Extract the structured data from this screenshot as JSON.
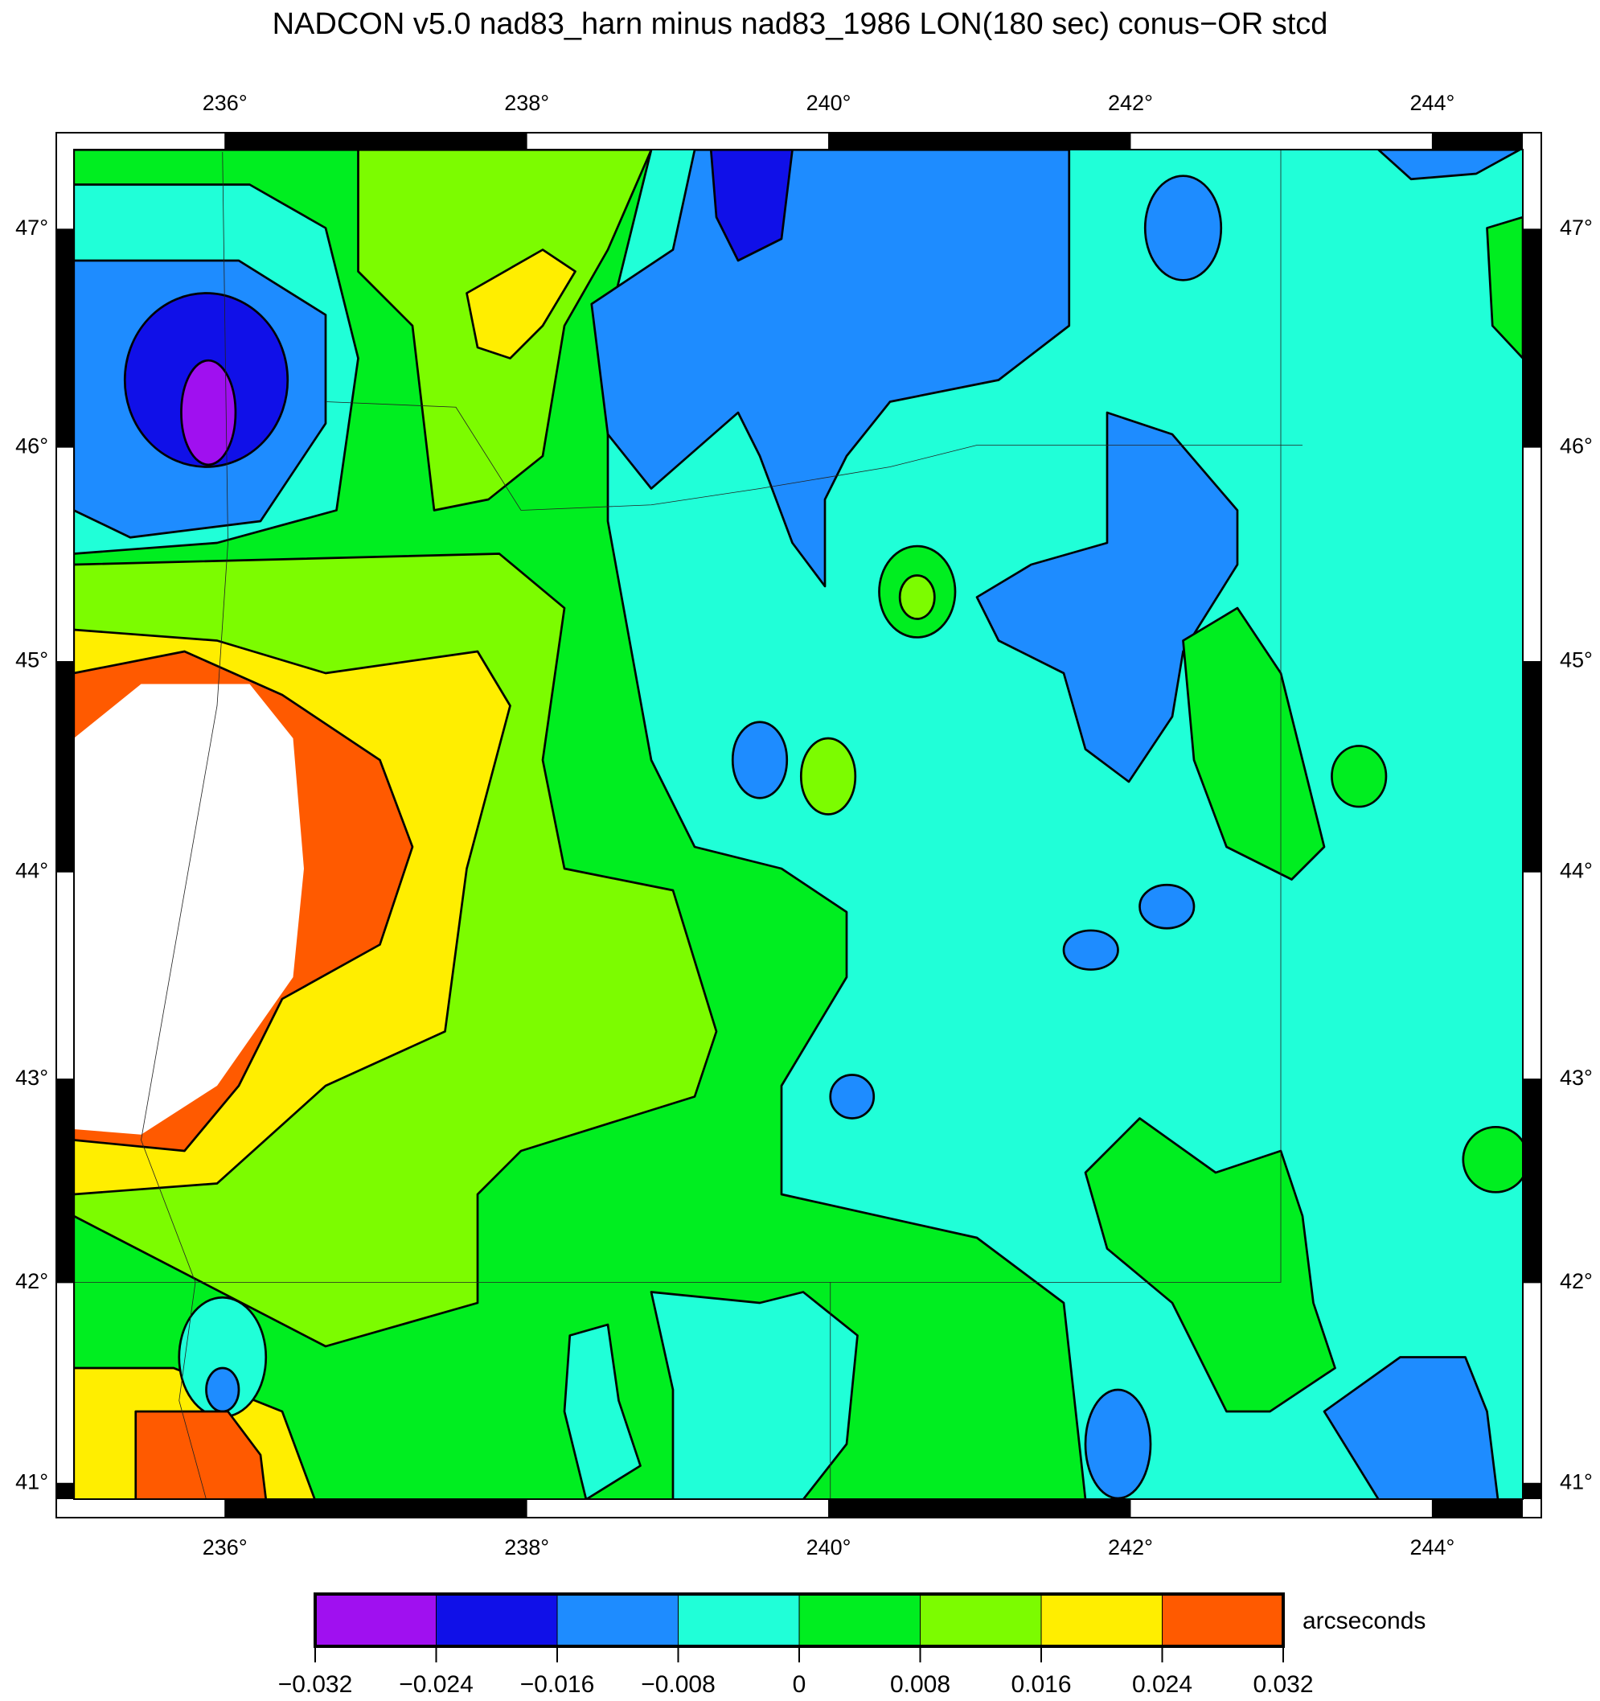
{
  "title": "NADCON v5.0 nad83_harn minus nad83_1986 LON(180 sec) conus−OR stcd",
  "map": {
    "xlim": [
      235,
      244.6
    ],
    "ylim": [
      40.92,
      47.36
    ],
    "xticks": [
      {
        "value": 236,
        "label": "236°"
      },
      {
        "value": 238,
        "label": "238°"
      },
      {
        "value": 240,
        "label": "240°"
      },
      {
        "value": 242,
        "label": "242°"
      },
      {
        "value": 244,
        "label": "244°"
      }
    ],
    "yticks": [
      {
        "value": 41,
        "label": "41°"
      },
      {
        "value": 42,
        "label": "42°"
      },
      {
        "value": 43,
        "label": "43°"
      },
      {
        "value": 44,
        "label": "44°"
      },
      {
        "value": 45,
        "label": "45°"
      },
      {
        "value": 46,
        "label": "46°"
      },
      {
        "value": 47,
        "label": "47°"
      }
    ]
  },
  "colorbar": {
    "label": "arcseconds",
    "ticks": [
      {
        "value": -0.032,
        "label": "−0.032"
      },
      {
        "value": -0.024,
        "label": "−0.024"
      },
      {
        "value": -0.016,
        "label": "−0.016"
      },
      {
        "value": -0.008,
        "label": "−0.008"
      },
      0,
      0.008,
      0.016,
      0.024,
      0.032
    ],
    "colors": [
      "#a010f0",
      "#1010e8",
      "#1e8cff",
      "#20ffd8",
      "#00ee20",
      "#7cfc00",
      "#ffee00",
      "#ff5a00"
    ]
  }
}
